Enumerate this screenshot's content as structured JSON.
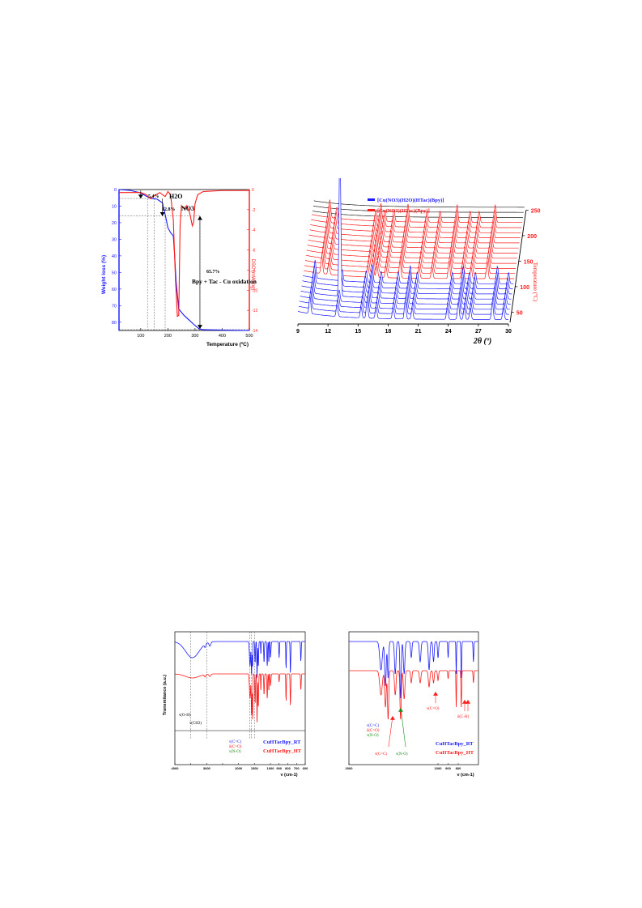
{
  "colors": {
    "blue": "#1a1aff",
    "red": "#ff1a1a",
    "green": "#1a8c1a",
    "black": "#000000",
    "grey": "#333333"
  },
  "chart_data": [
    {
      "type": "line",
      "panel": "tga-dsc",
      "xlabel": "Temperature (ºC)",
      "ylabel": "Weight loss (%)",
      "ylabel_right": "DSC (mW/mg)",
      "xlim": [
        20,
        500
      ],
      "ylim": [
        0,
        85
      ],
      "ylim_right": [
        0,
        14
      ],
      "xticks": [
        "100",
        "200",
        "300",
        "400",
        "500"
      ],
      "yticks": [
        "0",
        "10",
        "20",
        "30",
        "40",
        "50",
        "60",
        "70",
        "80"
      ],
      "yticks_right": [
        "0",
        "-2",
        "-4",
        "-6",
        "-8",
        "-10",
        "-12",
        "-14"
      ],
      "annotations": [
        "5.4%",
        "H2O",
        "12.8%",
        "NO3",
        "65.7%",
        "Bpy + Tac - Cu oxidation"
      ],
      "series": [
        {
          "name": "",
          "axis": "left",
          "color": "blue",
          "x": [
            20,
            60,
            100,
            120,
            140,
            160,
            180,
            190,
            200,
            210,
            215,
            220,
            225,
            230,
            240,
            260,
            280,
            300,
            315,
            330,
            400,
            500
          ],
          "y": [
            0,
            0.5,
            2,
            4,
            5.4,
            5.8,
            8,
            15,
            23,
            26,
            27,
            28,
            40,
            55,
            72,
            76,
            79,
            82,
            84,
            84.5,
            84.8,
            85
          ]
        },
        {
          "name": "",
          "axis": "right",
          "color": "red",
          "x": [
            20,
            100,
            120,
            135,
            150,
            170,
            190,
            200,
            210,
            220,
            228,
            235,
            240,
            245,
            250,
            255,
            265,
            270,
            280,
            290,
            295,
            300,
            310,
            330,
            400,
            500
          ],
          "y": [
            0.3,
            0.3,
            0.5,
            0.9,
            0.6,
            0.3,
            0.7,
            0.2,
            0.5,
            3,
            9,
            12.6,
            12.5,
            3.5,
            1.6,
            1.8,
            1.9,
            1.6,
            2.3,
            3.6,
            3.2,
            1.4,
            0.5,
            0.2,
            0.1,
            0.1
          ]
        }
      ]
    },
    {
      "type": "line",
      "panel": "vt-pxrd",
      "xlabel": "2θ (º)",
      "zlabel": "Temperature (ºC)",
      "xlim": [
        9,
        30
      ],
      "xticks": [
        "9",
        "12",
        "15",
        "18",
        "21",
        "24",
        "27",
        "30"
      ],
      "zticks": [
        "50",
        "100",
        "150",
        "200",
        "250"
      ],
      "legend": [
        "[Cu(NO3)(H2O)(HTac)(Bpy)]",
        "[Cu(NO3)(HTac)(Bpy)]"
      ],
      "legend_position": "top",
      "peaks_blue_2theta": [
        10.2,
        12.9,
        15.3,
        15.9,
        16.8,
        18.5,
        19.7,
        20.4,
        23.9,
        25.0,
        25.6,
        26.2,
        28.4,
        29.5
      ],
      "peaks_red_2theta": [
        10.8,
        11.5,
        15.4,
        15.9,
        16.3,
        17.2,
        18.6,
        20.5,
        21.8,
        23.5,
        24.8,
        25.7,
        27.3
      ],
      "temperatures": [
        30,
        40,
        50,
        60,
        70,
        80,
        90,
        100,
        110,
        120,
        130,
        140,
        150,
        160,
        170,
        180,
        190,
        200,
        210,
        220,
        230,
        240,
        250
      ]
    },
    {
      "type": "line",
      "panel": "ftir-full",
      "xlabel": "ν (cm-1)",
      "ylabel": "Transmitance (a.u.)",
      "xlim": [
        4000,
        600
      ],
      "xticks": [
        "4000",
        "3500",
        "3000",
        "2500",
        "2000",
        "1500",
        "1000",
        "900",
        "800",
        "700",
        "600"
      ],
      "annotations": [
        "ν(O-H)",
        "ν(CH2)",
        "ν(C=C)",
        "δ(C=O)",
        "ν(N-O)"
      ],
      "legend": [
        "CuHTacBpy_RT",
        "CuHTacBpy_HT"
      ],
      "legend_position": "bottom-right"
    },
    {
      "type": "line",
      "panel": "ftir-zoom",
      "xlabel": "ν (cm-1)",
      "xlim": [
        2000,
        600
      ],
      "xticks": [
        "2000",
        "1000",
        "900",
        "800"
      ],
      "annotations": [
        "ν(C=C)",
        "δ(C=O)",
        "ν(N-O)",
        "ν(C=C)",
        "ν(N-O)",
        "ν(C=O)",
        "δ(C-H)"
      ],
      "legend": [
        "CuHTacBpy_RT",
        "CuHTacBpy_HT"
      ],
      "legend_position": "bottom-right"
    }
  ]
}
